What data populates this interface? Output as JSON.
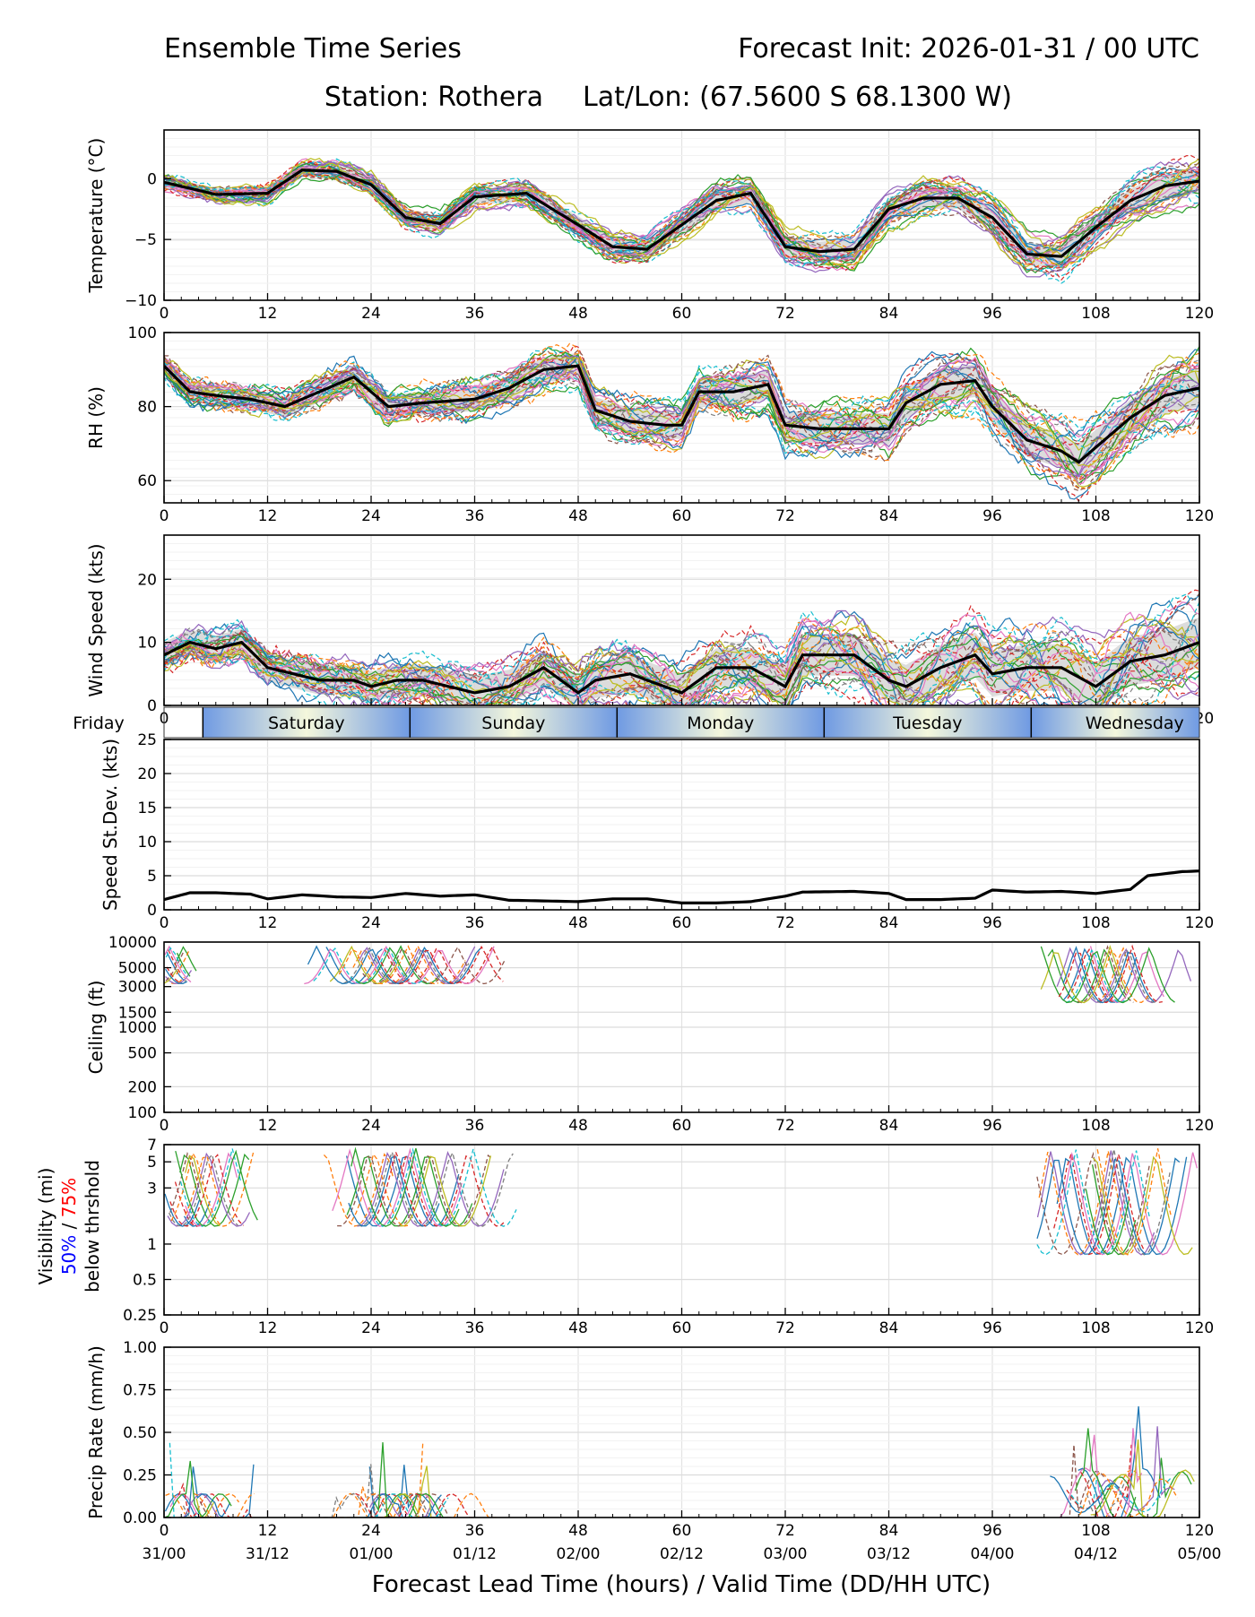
{
  "header": {
    "title": "Ensemble Time Series",
    "init": "Forecast Init: 2026-01-31 / 00 UTC",
    "station": "Station: Rothera",
    "latlon": "Lat/Lon: (67.5600 S 68.1300 W)"
  },
  "days": [
    "Friday",
    "Saturday",
    "Sunday",
    "Monday",
    "Tuesday",
    "Wednesday"
  ],
  "xaxis": {
    "label": "Forecast Lead Time (hours) / Valid Time (DD/HH UTC)",
    "ticks": [
      "0",
      "12",
      "24",
      "36",
      "48",
      "60",
      "72",
      "84",
      "96",
      "108",
      "120"
    ],
    "valid": [
      "31/00",
      "31/12",
      "01/00",
      "01/12",
      "02/00",
      "02/12",
      "03/00",
      "03/12",
      "04/00",
      "04/12",
      "05/00"
    ]
  },
  "visibility_label": {
    "line1": "Visibility (mi)",
    "pct50": "50%",
    "slash": " / ",
    "pct75": "75%",
    "line3": "below thrshold"
  },
  "colors": {
    "mean": "#000000",
    "spread": "#d3d3d3",
    "members": [
      "#1f77b4",
      "#ff7f0e",
      "#2ca02c",
      "#d62728",
      "#9467bd",
      "#8c564b",
      "#e377c2",
      "#7f7f7f",
      "#bcbd22",
      "#17becf"
    ],
    "band": [
      "#6f9ae3",
      "#f4f7dc"
    ],
    "pct50": "#0000ff",
    "pct75": "#ff0000"
  },
  "chart_data": [
    {
      "type": "line",
      "id": "temp",
      "ylabel": "Temperature (°C)",
      "ylim": [
        -10,
        4
      ],
      "yticks": [
        -10,
        -5,
        0
      ],
      "ytick_labels": [
        "−10",
        "−5",
        "0"
      ],
      "mean": {
        "x": [
          0,
          6,
          12,
          16,
          20,
          24,
          28,
          32,
          36,
          42,
          48,
          52,
          56,
          60,
          64,
          68,
          72,
          76,
          80,
          84,
          88,
          92,
          96,
          100,
          104,
          108,
          112,
          116,
          120
        ],
        "y": [
          -0.3,
          -1.3,
          -1.2,
          0.7,
          0.6,
          -0.5,
          -3.2,
          -3.7,
          -1.5,
          -1.2,
          -3.8,
          -5.6,
          -5.8,
          -3.8,
          -1.8,
          -1.2,
          -5.6,
          -6.0,
          -5.8,
          -2.5,
          -1.6,
          -1.6,
          -3.2,
          -6.2,
          -6.4,
          -4.0,
          -1.8,
          -0.6,
          -0.2
        ]
      },
      "spread_sd": 0.5,
      "members": 30
    },
    {
      "type": "line",
      "id": "rh",
      "ylabel": "RH (%)",
      "ylim": [
        54,
        100
      ],
      "yticks": [
        60,
        80,
        100
      ],
      "ytick_labels": [
        "60",
        "80",
        "100"
      ],
      "mean": {
        "x": [
          0,
          3,
          6,
          10,
          14,
          18,
          22,
          26,
          30,
          36,
          40,
          44,
          48,
          50,
          54,
          58,
          60,
          62,
          66,
          70,
          72,
          76,
          84,
          86,
          90,
          94,
          96,
          100,
          104,
          106,
          108,
          112,
          116,
          120
        ],
        "y": [
          91,
          84,
          83,
          82,
          80,
          84,
          88,
          80,
          81,
          82,
          85,
          90,
          91,
          79,
          76,
          75,
          75,
          84,
          84,
          86,
          75,
          74,
          74,
          81,
          86,
          87,
          80,
          71,
          68,
          65,
          69,
          77,
          83,
          85
        ]
      },
      "spread_sd": 2.5,
      "members": 30
    },
    {
      "type": "line",
      "id": "wind",
      "ylabel": "Wind Speed (kts)",
      "ylim": [
        0,
        27
      ],
      "yticks": [
        0,
        10,
        20
      ],
      "ytick_labels": [
        "0",
        "10",
        "20"
      ],
      "mean": {
        "x": [
          0,
          3,
          6,
          9,
          12,
          18,
          22,
          24,
          27,
          30,
          33,
          36,
          40,
          44,
          48,
          50,
          54,
          58,
          60,
          64,
          68,
          72,
          74,
          76,
          80,
          84,
          86,
          90,
          94,
          96,
          100,
          104,
          108,
          112,
          116,
          120
        ],
        "y": [
          8,
          10,
          9,
          10,
          6,
          4,
          4,
          3,
          4,
          4,
          3,
          2,
          3,
          6,
          2,
          4,
          5,
          3,
          2,
          6,
          6,
          3,
          8,
          8,
          8,
          4,
          3,
          6,
          8,
          5,
          6,
          6,
          3,
          7,
          8,
          10
        ]
      },
      "spread_sd": 2.0,
      "members": 30
    },
    {
      "type": "line",
      "id": "sd",
      "ylabel": "Speed St.Dev. (kts)",
      "ylim": [
        0,
        25
      ],
      "yticks": [
        0,
        5,
        10,
        15,
        20,
        25
      ],
      "ytick_labels": [
        "0",
        "5",
        "10",
        "15",
        "20",
        "25"
      ],
      "mean": {
        "x": [
          0,
          3,
          6,
          10,
          12,
          16,
          20,
          24,
          28,
          32,
          36,
          40,
          44,
          48,
          52,
          56,
          60,
          64,
          68,
          72,
          74,
          80,
          84,
          86,
          90,
          94,
          96,
          100,
          104,
          108,
          112,
          114,
          118,
          120
        ],
        "y": [
          1.5,
          2.5,
          2.5,
          2.3,
          1.6,
          2.2,
          1.9,
          1.8,
          2.4,
          2.0,
          2.2,
          1.4,
          1.3,
          1.2,
          1.6,
          1.6,
          1.0,
          1.0,
          1.2,
          2.0,
          2.6,
          2.7,
          2.4,
          1.5,
          1.5,
          1.7,
          2.9,
          2.6,
          2.7,
          2.4,
          3.0,
          5.0,
          5.6,
          5.7
        ]
      },
      "spread_sd": 0,
      "members": 0
    },
    {
      "type": "line",
      "id": "ceil",
      "ylabel": "Ceiling (ft)",
      "scale": "log",
      "ylim": [
        100,
        10000
      ],
      "yticks": [
        100,
        200,
        500,
        1000,
        1500,
        3000,
        5000,
        10000
      ],
      "ytick_labels": [
        "100",
        "200",
        "500",
        "1000",
        "1500",
        "3000",
        "5000",
        "10000"
      ],
      "segments": [
        [
          0,
          4
        ],
        [
          16,
          40
        ],
        [
          101,
          120
        ]
      ],
      "members": 14
    },
    {
      "type": "line",
      "id": "vis",
      "ylabel": "",
      "scale": "log",
      "ylim": [
        0.25,
        7
      ],
      "yticks": [
        0.25,
        0.5,
        1,
        3,
        5,
        7
      ],
      "ytick_labels": [
        "0.25",
        "0.5",
        "1",
        "3",
        "5",
        "7"
      ],
      "segments": [
        [
          0,
          11
        ],
        [
          18,
          42
        ],
        [
          101,
          120
        ]
      ],
      "members": 14
    },
    {
      "type": "line",
      "id": "precip",
      "ylabel": "Precip Rate (mm/h)",
      "ylim": [
        0,
        1.0
      ],
      "yticks": [
        0,
        0.25,
        0.5,
        0.75,
        1.0
      ],
      "ytick_labels": [
        "0.00",
        "0.25",
        "0.50",
        "0.75",
        "1.00"
      ],
      "segments": [
        [
          0,
          11
        ],
        [
          18,
          40
        ],
        [
          102,
          120
        ]
      ],
      "members": 14
    }
  ]
}
